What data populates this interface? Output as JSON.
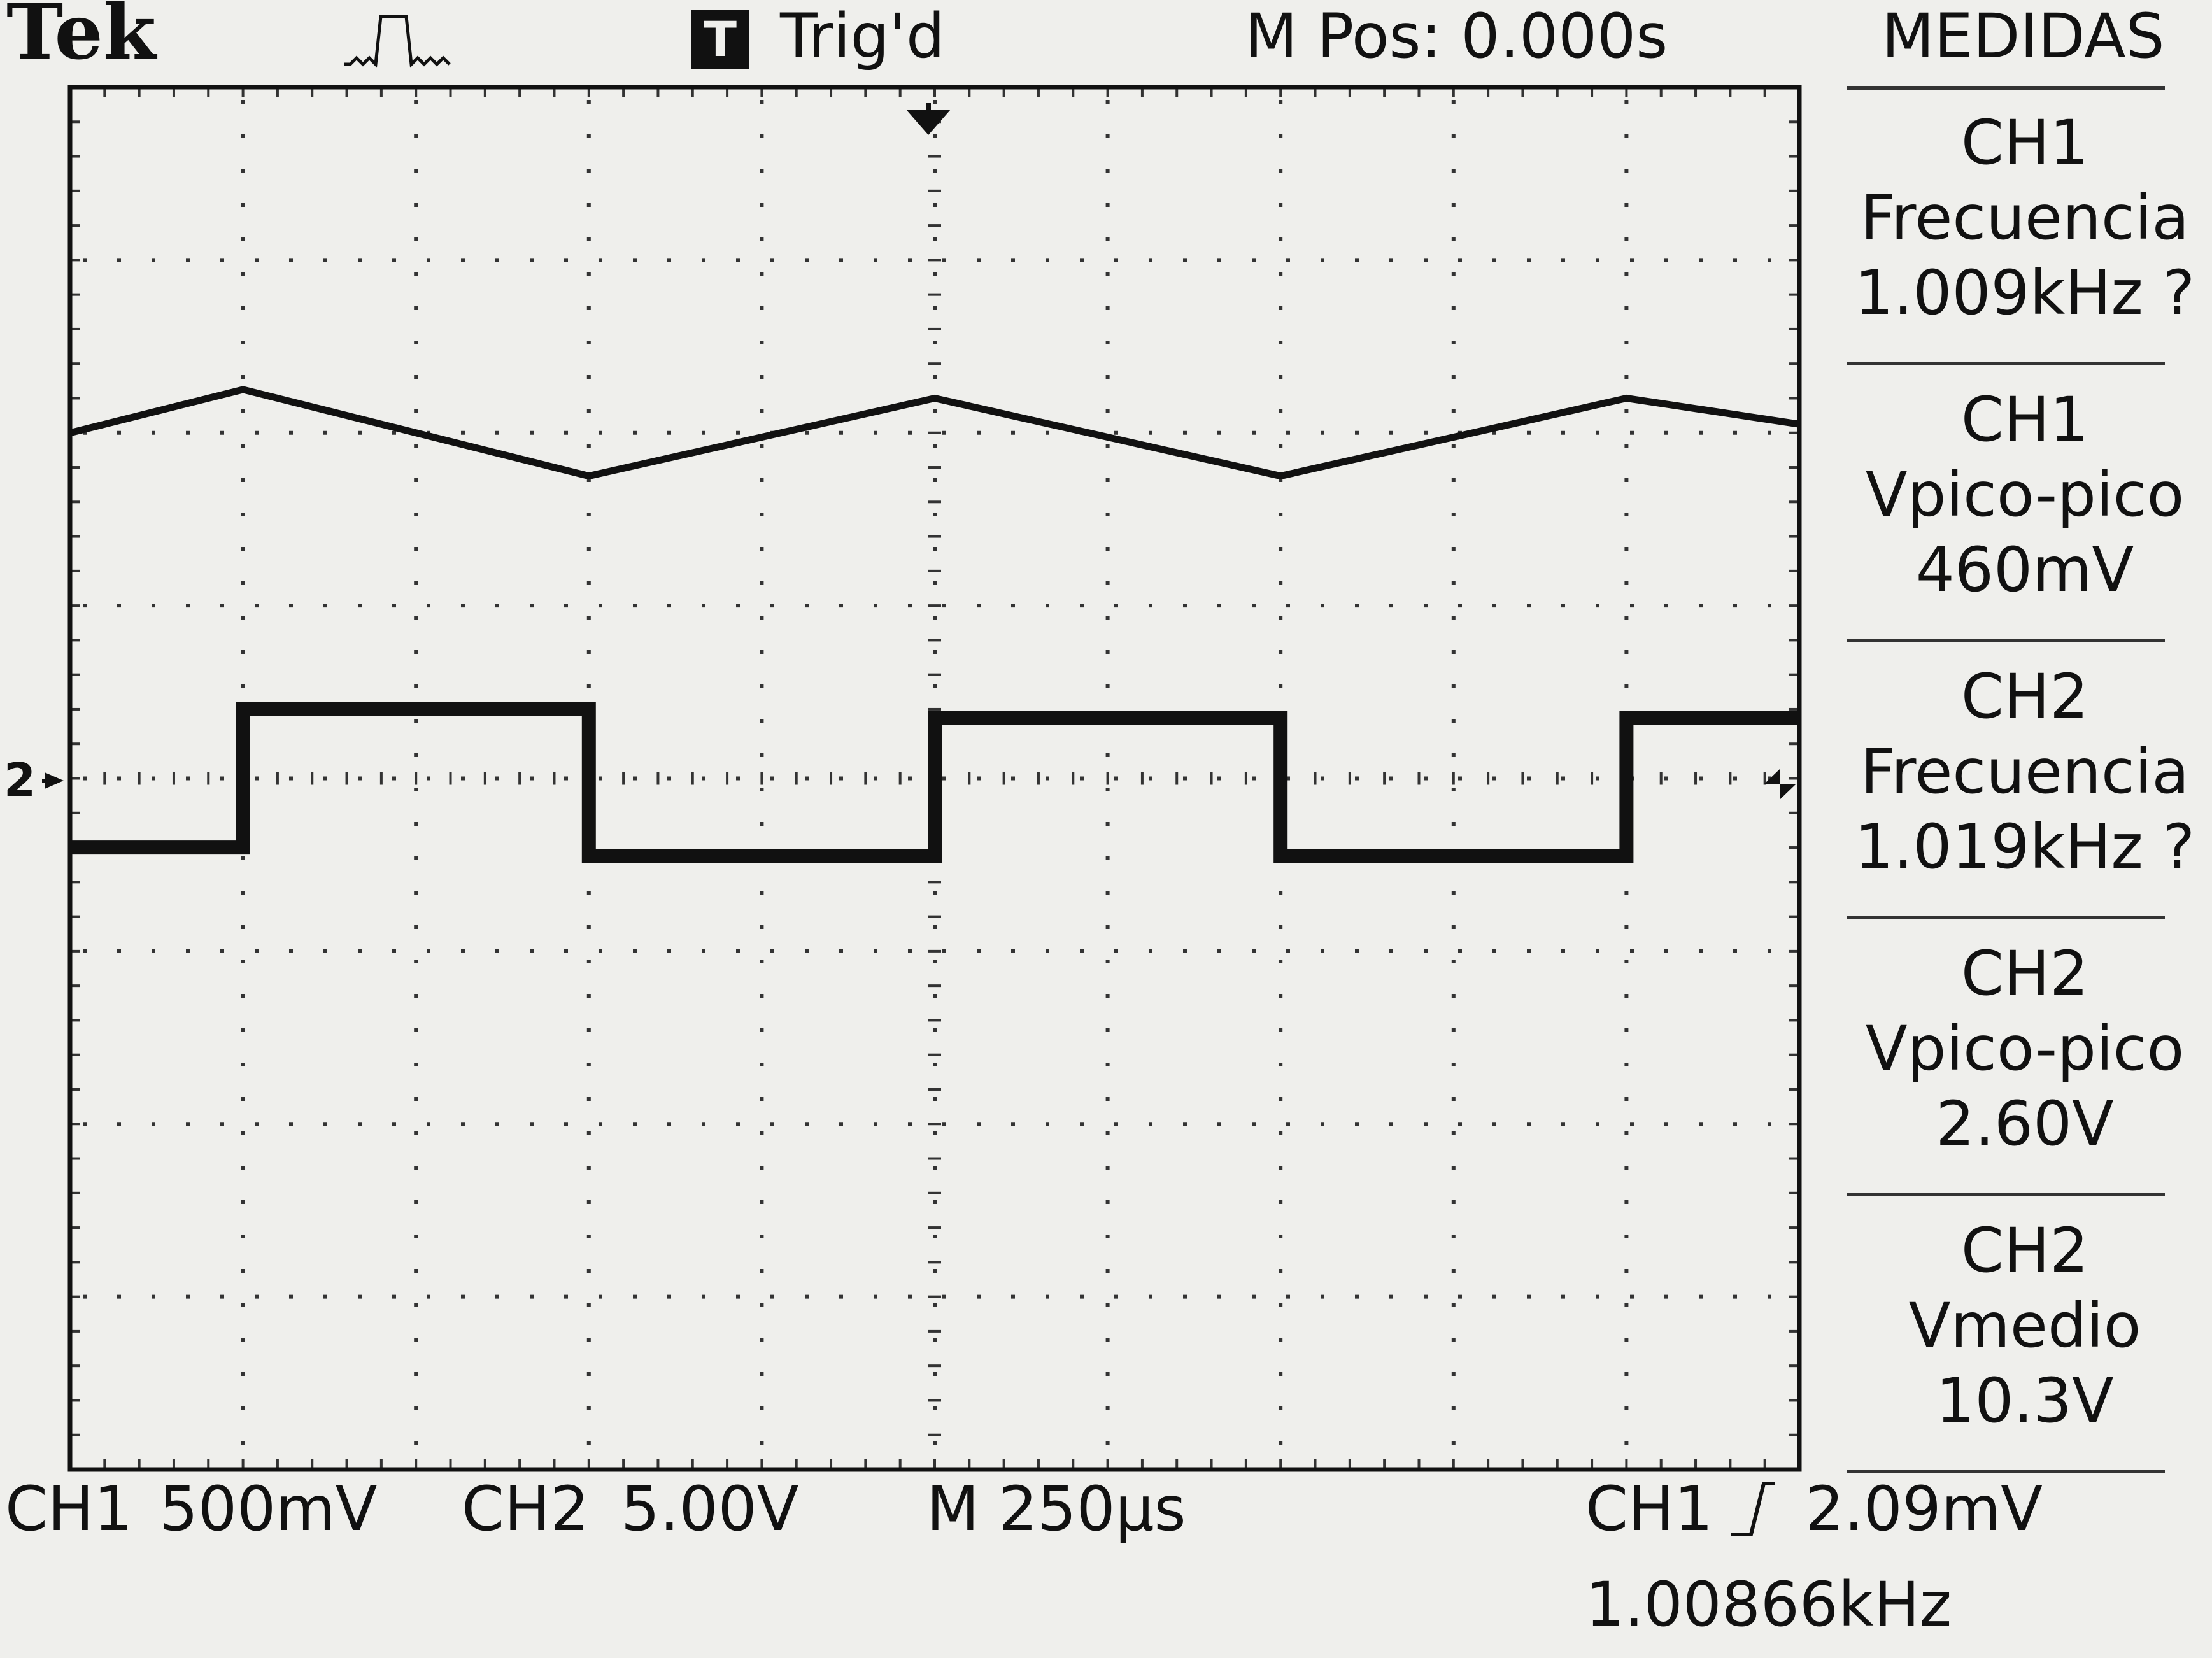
{
  "header": {
    "brand": "Tek",
    "trigger_badge": "T",
    "trigger_status": "Trig'd",
    "m_pos": "M Pos: 0.000s",
    "menu_title": "MEDIDAS"
  },
  "measurements": [
    {
      "channel": "CH1",
      "name": "Frecuencia",
      "value": "1.009kHz ?"
    },
    {
      "channel": "CH1",
      "name": "Vpico-pico",
      "value": "460mV"
    },
    {
      "channel": "CH2",
      "name": "Frecuencia",
      "value": "1.019kHz ?"
    },
    {
      "channel": "CH2",
      "name": "Vpico-pico",
      "value": "2.60V"
    },
    {
      "channel": "CH2",
      "name": "Vmedio",
      "value": "10.3V"
    }
  ],
  "footer": {
    "ch1_label": "CH1",
    "ch1_scale": "500mV",
    "ch2_label": "CH2",
    "ch2_scale": "5.00V",
    "timebase": "M 250µs",
    "trigger_source": "CH1",
    "trigger_level": "2.09mV",
    "trigger_freq": "1.00866kHz"
  },
  "ground_marker": "2",
  "chart_data": {
    "type": "line",
    "title": "",
    "x_unit": "divisions",
    "x_range": [
      0,
      10
    ],
    "y_range": [
      -4,
      4
    ],
    "grid": true,
    "series": [
      {
        "name": "CH1",
        "color": "#111111",
        "x": [
          0,
          1,
          3,
          5,
          7,
          9,
          10
        ],
        "y": [
          2.0,
          2.25,
          1.75,
          2.2,
          1.75,
          2.2,
          2.05
        ]
      },
      {
        "name": "CH2",
        "color": "#111111",
        "x": [
          0,
          1,
          1,
          3,
          3,
          5,
          5,
          7,
          7,
          9,
          9,
          10
        ],
        "y": [
          -0.4,
          -0.4,
          0.4,
          0.4,
          -0.45,
          -0.45,
          0.35,
          0.35,
          -0.45,
          -0.45,
          0.35,
          0.35
        ]
      }
    ]
  }
}
